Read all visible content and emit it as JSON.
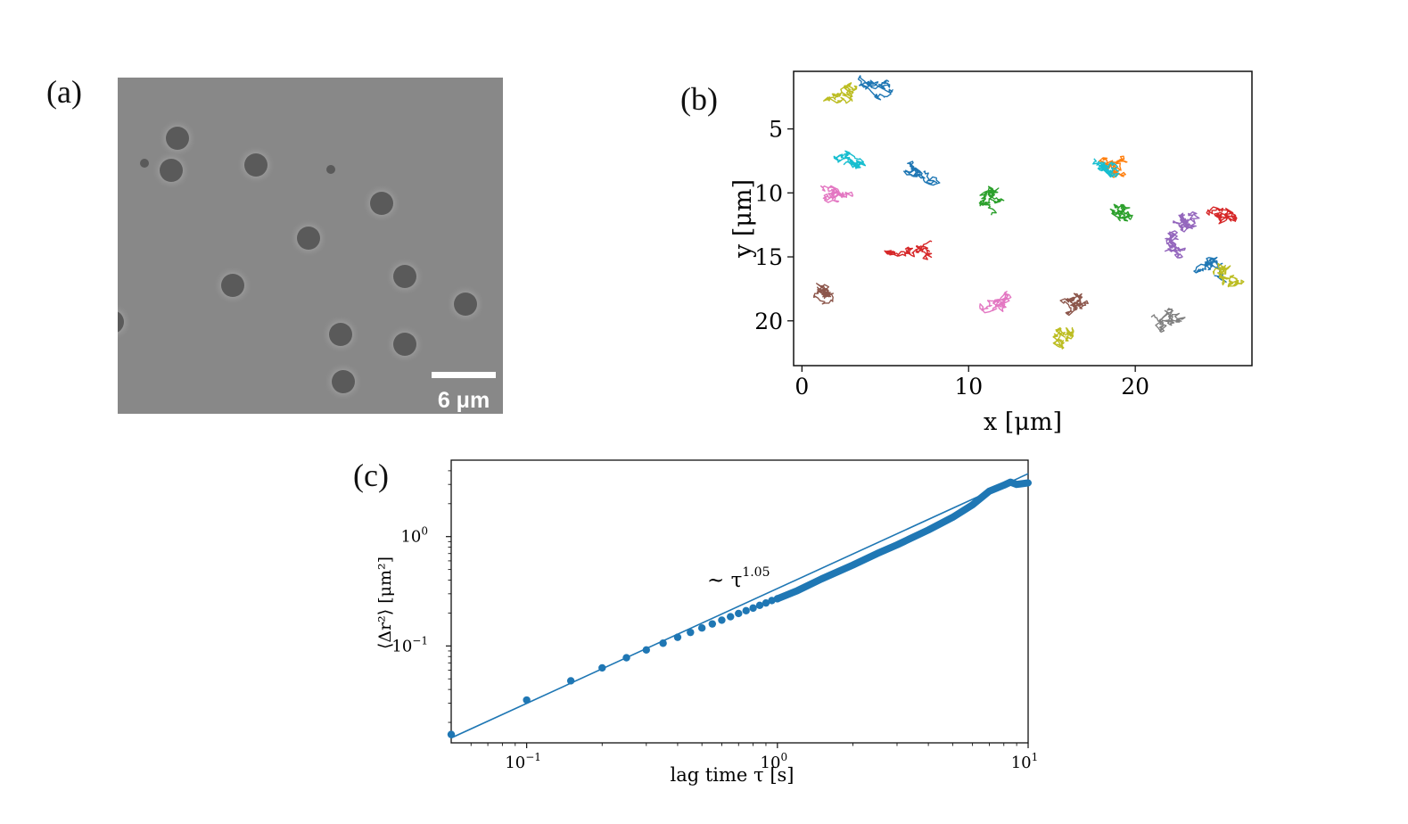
{
  "panels": {
    "a": {
      "label": "(a)",
      "scale_bar_text": "6 μm"
    },
    "b": {
      "label": "(b)"
    },
    "c": {
      "label": "(c)"
    }
  },
  "colors": {
    "micro_bg": "#888888",
    "particle": "#5a5a5a",
    "halo": "#b2b2b2",
    "scale_bar": "#ffffff",
    "series": "#1f77b4",
    "track_palette": [
      "#1f77b4",
      "#ff7f0e",
      "#2ca02c",
      "#d62728",
      "#9467bd",
      "#8c564b",
      "#e377c2",
      "#7f7f7f",
      "#bcbd22",
      "#17becf"
    ]
  },
  "chart_data": [
    {
      "type": "scatter",
      "panel": "b",
      "title": "",
      "xlabel": "x [μm]",
      "ylabel": "y [μm]",
      "xlim": [
        -0.5,
        27
      ],
      "ylim": [
        23.5,
        0.5
      ],
      "y_inverted": true,
      "xticks": [
        "0",
        "10",
        "20"
      ],
      "yticks": [
        "5",
        "10",
        "15",
        "20"
      ],
      "grid": false,
      "tracks": [
        {
          "color": "#bcbd22",
          "center": [
            2.2,
            2.2
          ]
        },
        {
          "color": "#1f77b4",
          "center": [
            4.2,
            1.8
          ]
        },
        {
          "color": "#17becf",
          "center": [
            2.5,
            7.8
          ]
        },
        {
          "color": "#e377c2",
          "center": [
            1.5,
            10.2
          ]
        },
        {
          "color": "#1f77b4",
          "center": [
            7.3,
            8.4
          ]
        },
        {
          "color": "#2ca02c",
          "center": [
            11.2,
            10.5
          ]
        },
        {
          "color": "#ff7f0e",
          "center": [
            18.5,
            8.0
          ]
        },
        {
          "color": "#17becf",
          "center": [
            18.4,
            7.8
          ]
        },
        {
          "color": "#2ca02c",
          "center": [
            19.4,
            11.3
          ]
        },
        {
          "color": "#9467bd",
          "center": [
            22.6,
            11.7
          ]
        },
        {
          "color": "#d62728",
          "center": [
            25.2,
            11.5
          ]
        },
        {
          "color": "#9467bd",
          "center": [
            22.3,
            14.5
          ]
        },
        {
          "color": "#1f77b4",
          "center": [
            24.9,
            15.8
          ]
        },
        {
          "color": "#bcbd22",
          "center": [
            25.2,
            16.2
          ]
        },
        {
          "color": "#d62728",
          "center": [
            6.5,
            14.8
          ]
        },
        {
          "color": "#e377c2",
          "center": [
            11.6,
            19.0
          ]
        },
        {
          "color": "#bcbd22",
          "center": [
            15.8,
            21.3
          ]
        },
        {
          "color": "#7f7f7f",
          "center": [
            22.1,
            20.3
          ]
        },
        {
          "color": "#8c564b",
          "center": [
            0.9,
            17.8
          ]
        },
        {
          "color": "#8c564b",
          "center": [
            16.2,
            18.3
          ]
        }
      ]
    },
    {
      "type": "scatter",
      "panel": "c",
      "title": "",
      "xlabel": "lag time τ [s]",
      "ylabel": "⟨Δr²⟩ [μm²]",
      "xscale": "log",
      "yscale": "log",
      "xlim": [
        0.05,
        10
      ],
      "ylim": [
        0.013,
        5
      ],
      "xticks": [
        "10⁻¹",
        "10⁰",
        "10¹"
      ],
      "yticks": [
        "10⁻¹",
        "10⁰"
      ],
      "annotation": "~ τ^1.05",
      "fit": {
        "exponent": 1.05,
        "prefactor": 0.335
      },
      "series": [
        {
          "x": [
            0.05,
            0.1,
            0.15,
            0.2,
            0.25,
            0.3,
            0.35,
            0.4,
            0.45,
            0.5,
            0.55,
            0.6,
            0.65,
            0.7,
            0.75,
            0.8,
            0.85,
            0.9,
            0.95,
            1.0,
            1.2,
            1.5,
            2.0,
            2.5,
            3.0,
            4.0,
            5.0,
            6.0,
            7.0,
            8.0,
            8.5,
            9.0,
            10.0
          ],
          "y": [
            0.0155,
            0.032,
            0.048,
            0.063,
            0.078,
            0.092,
            0.106,
            0.12,
            0.133,
            0.146,
            0.159,
            0.172,
            0.185,
            0.198,
            0.21,
            0.222,
            0.235,
            0.247,
            0.26,
            0.27,
            0.32,
            0.41,
            0.55,
            0.7,
            0.84,
            1.15,
            1.5,
            1.95,
            2.6,
            2.95,
            3.15,
            3.0,
            3.1
          ]
        }
      ]
    }
  ]
}
